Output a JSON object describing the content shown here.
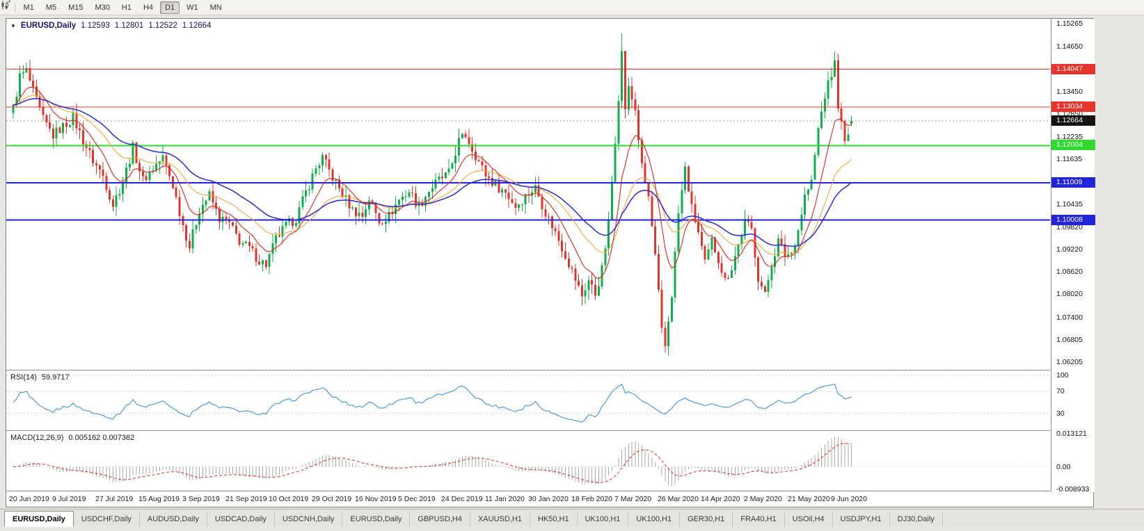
{
  "toolbar": {
    "timeframes": [
      {
        "label": "M1",
        "active": false
      },
      {
        "label": "M5",
        "active": false
      },
      {
        "label": "M15",
        "active": false
      },
      {
        "label": "M30",
        "active": false
      },
      {
        "label": "H1",
        "active": false
      },
      {
        "label": "H4",
        "active": false
      },
      {
        "label": "D1",
        "active": true
      },
      {
        "label": "W1",
        "active": false
      },
      {
        "label": "MN",
        "active": false
      }
    ]
  },
  "chart": {
    "symbol_title": "EURUSD,Daily",
    "ohlc": {
      "open": "1.12593",
      "high": "1.12801",
      "low": "1.12522",
      "close": "1.12664"
    }
  },
  "price_axis": {
    "min": 1.0598,
    "max": 1.154,
    "labels": [
      "1.15265",
      "1.14650",
      "1.13450",
      "1.12850",
      "1.12235",
      "1.11635",
      "1.10435",
      "1.09820",
      "1.09220",
      "1.08620",
      "1.08020",
      "1.07400",
      "1.06805",
      "1.06205"
    ]
  },
  "levels": [
    {
      "label": "1.14047",
      "value": 1.14047,
      "color": "#e8352b",
      "width": 1
    },
    {
      "label": "1.13034",
      "value": 1.13034,
      "color": "#e8352b",
      "width": 1
    },
    {
      "label": "1.12004",
      "value": 1.12004,
      "color": "#2fd92f",
      "width": 2
    },
    {
      "label": "1.11009",
      "value": 1.11009,
      "color": "#2224d8",
      "width": 2
    },
    {
      "label": "1.10008",
      "value": 1.10008,
      "color": "#2224d8",
      "width": 2
    }
  ],
  "current_price": {
    "label": "1.12664",
    "value": 1.12664,
    "box_color": "#141414"
  },
  "date_axis": [
    {
      "label": "20 Jun 2019",
      "bar": 0
    },
    {
      "label": "9 Jul 2019",
      "bar": 13
    },
    {
      "label": "27 Jul 2019",
      "bar": 26
    },
    {
      "label": "15 Aug 2019",
      "bar": 39
    },
    {
      "label": "3 Sep 2019",
      "bar": 52
    },
    {
      "label": "21 Sep 2019",
      "bar": 65
    },
    {
      "label": "10 Oct 2019",
      "bar": 78
    },
    {
      "label": "29 Oct 2019",
      "bar": 91
    },
    {
      "label": "16 Nov 2019",
      "bar": 104
    },
    {
      "label": "5 Dec 2019",
      "bar": 117
    },
    {
      "label": "24 Dec 2019",
      "bar": 130
    },
    {
      "label": "11 Jan 2020",
      "bar": 143
    },
    {
      "label": "30 Jan 2020",
      "bar": 156
    },
    {
      "label": "18 Feb 2020",
      "bar": 169
    },
    {
      "label": "7 Mar 2020",
      "bar": 182
    },
    {
      "label": "26 Mar 2020",
      "bar": 195
    },
    {
      "label": "14 Apr 2020",
      "bar": 208
    },
    {
      "label": "2 May 2020",
      "bar": 221
    },
    {
      "label": "21 May 2020",
      "bar": 234
    },
    {
      "label": "9 Jun 2020",
      "bar": 247
    }
  ],
  "rsi": {
    "name": "RSI(14)",
    "value": "59.9717",
    "axis_labels": [
      "100",
      "70",
      "30"
    ],
    "levels": [
      100,
      70,
      30
    ],
    "line_color": "#4f9bd5"
  },
  "macd": {
    "name": "MACD(12,26,9)",
    "values": "0.005162 0.007362",
    "axis_labels": [
      "0.013121",
      "0.00",
      "-0.008933"
    ],
    "histogram_color": "#a8a8a8",
    "signal_color": "#e23a2e"
  },
  "tabs": [
    {
      "label": "EURUSD,Daily",
      "active": true
    },
    {
      "label": "USDCHF,Daily",
      "active": false
    },
    {
      "label": "AUDUSD,Daily",
      "active": false
    },
    {
      "label": "USDCAD,Daily",
      "active": false
    },
    {
      "label": "USDCNH,Daily",
      "active": false
    },
    {
      "label": "EURUSD,Daily",
      "active": false
    },
    {
      "label": "GBPUSD,H4",
      "active": false
    },
    {
      "label": "XAUUSD,H1",
      "active": false
    },
    {
      "label": "HK50,H1",
      "active": false
    },
    {
      "label": "UK100,H1",
      "active": false
    },
    {
      "label": "UK100,H1",
      "active": false
    },
    {
      "label": "GER30,H1",
      "active": false
    },
    {
      "label": "FRA40,H1",
      "active": false
    },
    {
      "label": "USOil,H4",
      "active": false
    },
    {
      "label": "USDJPY,H1",
      "active": false
    },
    {
      "label": "DJ30,Daily",
      "active": false
    }
  ],
  "chart_data": {
    "type": "candlestick",
    "symbol": "EURUSD",
    "timeframe": "Daily",
    "bars_total": 253,
    "ohlc_last": {
      "open": 1.12593,
      "high": 1.12801,
      "low": 1.12522,
      "close": 1.12664
    },
    "horizontal_levels": [
      1.14047,
      1.13034,
      1.12004,
      1.11009,
      1.10008
    ],
    "indicators": [
      {
        "name": "RSI",
        "period": 14,
        "last_value": 59.9717
      },
      {
        "name": "MACD",
        "params": [
          12,
          26,
          9
        ],
        "last_values": [
          0.005162,
          0.007362
        ]
      }
    ],
    "candle_colors": {
      "up": "#0fae4b",
      "down": "#e0352b"
    },
    "ma_colors": {
      "fast": "#d8271b",
      "mid": "#efa93a",
      "slow": "#2a2ad0"
    },
    "spikes": [
      {
        "bar": 183,
        "extra_high": 0.0042
      }
    ],
    "price_path": [
      [
        0,
        1.13
      ],
      [
        2,
        1.1385
      ],
      [
        4,
        1.14
      ],
      [
        6,
        1.1345
      ],
      [
        9,
        1.127
      ],
      [
        12,
        1.1228
      ],
      [
        15,
        1.1252
      ],
      [
        18,
        1.1275
      ],
      [
        21,
        1.1215
      ],
      [
        24,
        1.116
      ],
      [
        27,
        1.112
      ],
      [
        30,
        1.1042
      ],
      [
        33,
        1.1105
      ],
      [
        36,
        1.1195
      ],
      [
        39,
        1.1108
      ],
      [
        42,
        1.114
      ],
      [
        45,
        1.1168
      ],
      [
        48,
        1.1095
      ],
      [
        51,
        1.0988
      ],
      [
        53,
        1.093
      ],
      [
        56,
        1.103
      ],
      [
        59,
        1.1068
      ],
      [
        62,
        1.1005
      ],
      [
        65,
        1.099
      ],
      [
        68,
        1.0945
      ],
      [
        71,
        1.0925
      ],
      [
        74,
        1.0892
      ],
      [
        76,
        1.0882
      ],
      [
        79,
        1.095
      ],
      [
        82,
        1.0985
      ],
      [
        85,
        1.1005
      ],
      [
        88,
        1.1075
      ],
      [
        91,
        1.114
      ],
      [
        93,
        1.1168
      ],
      [
        96,
        1.1115
      ],
      [
        99,
        1.107
      ],
      [
        102,
        1.1028
      ],
      [
        105,
        1.1012
      ],
      [
        107,
        1.1058
      ],
      [
        110,
        1.0998
      ],
      [
        113,
        1.1012
      ],
      [
        116,
        1.1055
      ],
      [
        119,
        1.1078
      ],
      [
        122,
        1.1038
      ],
      [
        125,
        1.108
      ],
      [
        128,
        1.1108
      ],
      [
        131,
        1.1125
      ],
      [
        134,
        1.1212
      ],
      [
        136,
        1.1228
      ],
      [
        139,
        1.1175
      ],
      [
        142,
        1.1122
      ],
      [
        145,
        1.1095
      ],
      [
        148,
        1.1075
      ],
      [
        151,
        1.1038
      ],
      [
        154,
        1.1065
      ],
      [
        157,
        1.1088
      ],
      [
        160,
        1.1022
      ],
      [
        163,
        1.0968
      ],
      [
        166,
        1.0908
      ],
      [
        169,
        1.0842
      ],
      [
        171,
        1.0798
      ],
      [
        173,
        1.084
      ],
      [
        175,
        1.0802
      ],
      [
        177,
        1.0868
      ],
      [
        179,
        1.099
      ],
      [
        181,
        1.1218
      ],
      [
        183,
        1.1448
      ],
      [
        184,
        1.1302
      ],
      [
        185,
        1.1352
      ],
      [
        187,
        1.1298
      ],
      [
        189,
        1.1142
      ],
      [
        191,
        1.1062
      ],
      [
        193,
        1.0902
      ],
      [
        195,
        1.0702
      ],
      [
        196,
        1.0662
      ],
      [
        198,
        1.0802
      ],
      [
        200,
        1.1018
      ],
      [
        202,
        1.1138
      ],
      [
        204,
        1.1032
      ],
      [
        206,
        1.0968
      ],
      [
        208,
        1.0882
      ],
      [
        210,
        1.0945
      ],
      [
        212,
        1.0898
      ],
      [
        214,
        1.0838
      ],
      [
        216,
        1.0875
      ],
      [
        218,
        1.0935
      ],
      [
        220,
        1.0995
      ],
      [
        222,
        1.0975
      ],
      [
        224,
        1.0848
      ],
      [
        226,
        1.0798
      ],
      [
        228,
        1.0885
      ],
      [
        230,
        1.0945
      ],
      [
        232,
        1.0908
      ],
      [
        234,
        1.0912
      ],
      [
        236,
        1.0975
      ],
      [
        238,
        1.1065
      ],
      [
        240,
        1.1102
      ],
      [
        242,
        1.1245
      ],
      [
        244,
        1.1335
      ],
      [
        246,
        1.1392
      ],
      [
        247,
        1.142
      ],
      [
        248,
        1.1312
      ],
      [
        249,
        1.1256
      ],
      [
        250,
        1.1206
      ],
      [
        251,
        1.1232
      ],
      [
        252,
        1.12664
      ]
    ]
  }
}
